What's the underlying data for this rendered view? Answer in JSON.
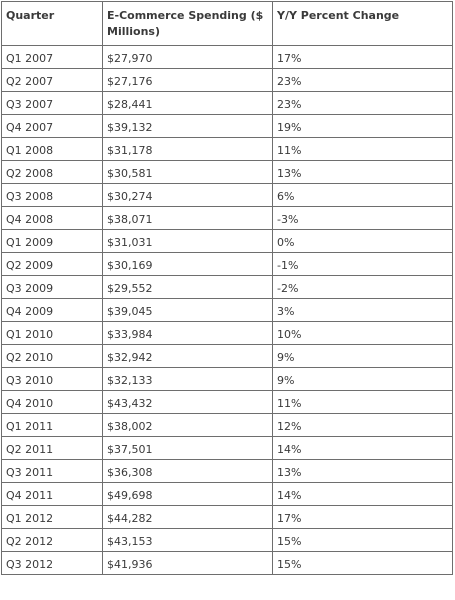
{
  "chart_data": {
    "type": "table",
    "columns": [
      "Quarter",
      "E-Commerce Spending ($ Millions)",
      "Y/Y Percent Change"
    ],
    "rows": [
      [
        "Q1 2007",
        "$27,970",
        "17%"
      ],
      [
        "Q2 2007",
        "$27,176",
        "23%"
      ],
      [
        "Q3 2007",
        "$28,441",
        "23%"
      ],
      [
        "Q4 2007",
        "$39,132",
        "19%"
      ],
      [
        "Q1 2008",
        "$31,178",
        "11%"
      ],
      [
        "Q2 2008",
        "$30,581",
        "13%"
      ],
      [
        "Q3 2008",
        "$30,274",
        "6%"
      ],
      [
        "Q4 2008",
        "$38,071",
        "-3%"
      ],
      [
        "Q1 2009",
        "$31,031",
        "0%"
      ],
      [
        "Q2 2009",
        "$30,169",
        "-1%"
      ],
      [
        "Q3 2009",
        "$29,552",
        "-2%"
      ],
      [
        "Q4 2009",
        "$39,045",
        "3%"
      ],
      [
        "Q1 2010",
        "$33,984",
        "10%"
      ],
      [
        "Q2 2010",
        "$32,942",
        "9%"
      ],
      [
        "Q3 2010",
        "$32,133",
        "9%"
      ],
      [
        "Q4 2010",
        "$43,432",
        "11%"
      ],
      [
        "Q1 2011",
        "$38,002",
        "12%"
      ],
      [
        "Q2 2011",
        "$37,501",
        "14%"
      ],
      [
        "Q3 2011",
        "$36,308",
        "13%"
      ],
      [
        "Q4 2011",
        "$49,698",
        "14%"
      ],
      [
        "Q1 2012",
        "$44,282",
        "17%"
      ],
      [
        "Q2 2012",
        "$43,153",
        "15%"
      ],
      [
        "Q3 2012",
        "$41,936",
        "15%"
      ]
    ]
  }
}
